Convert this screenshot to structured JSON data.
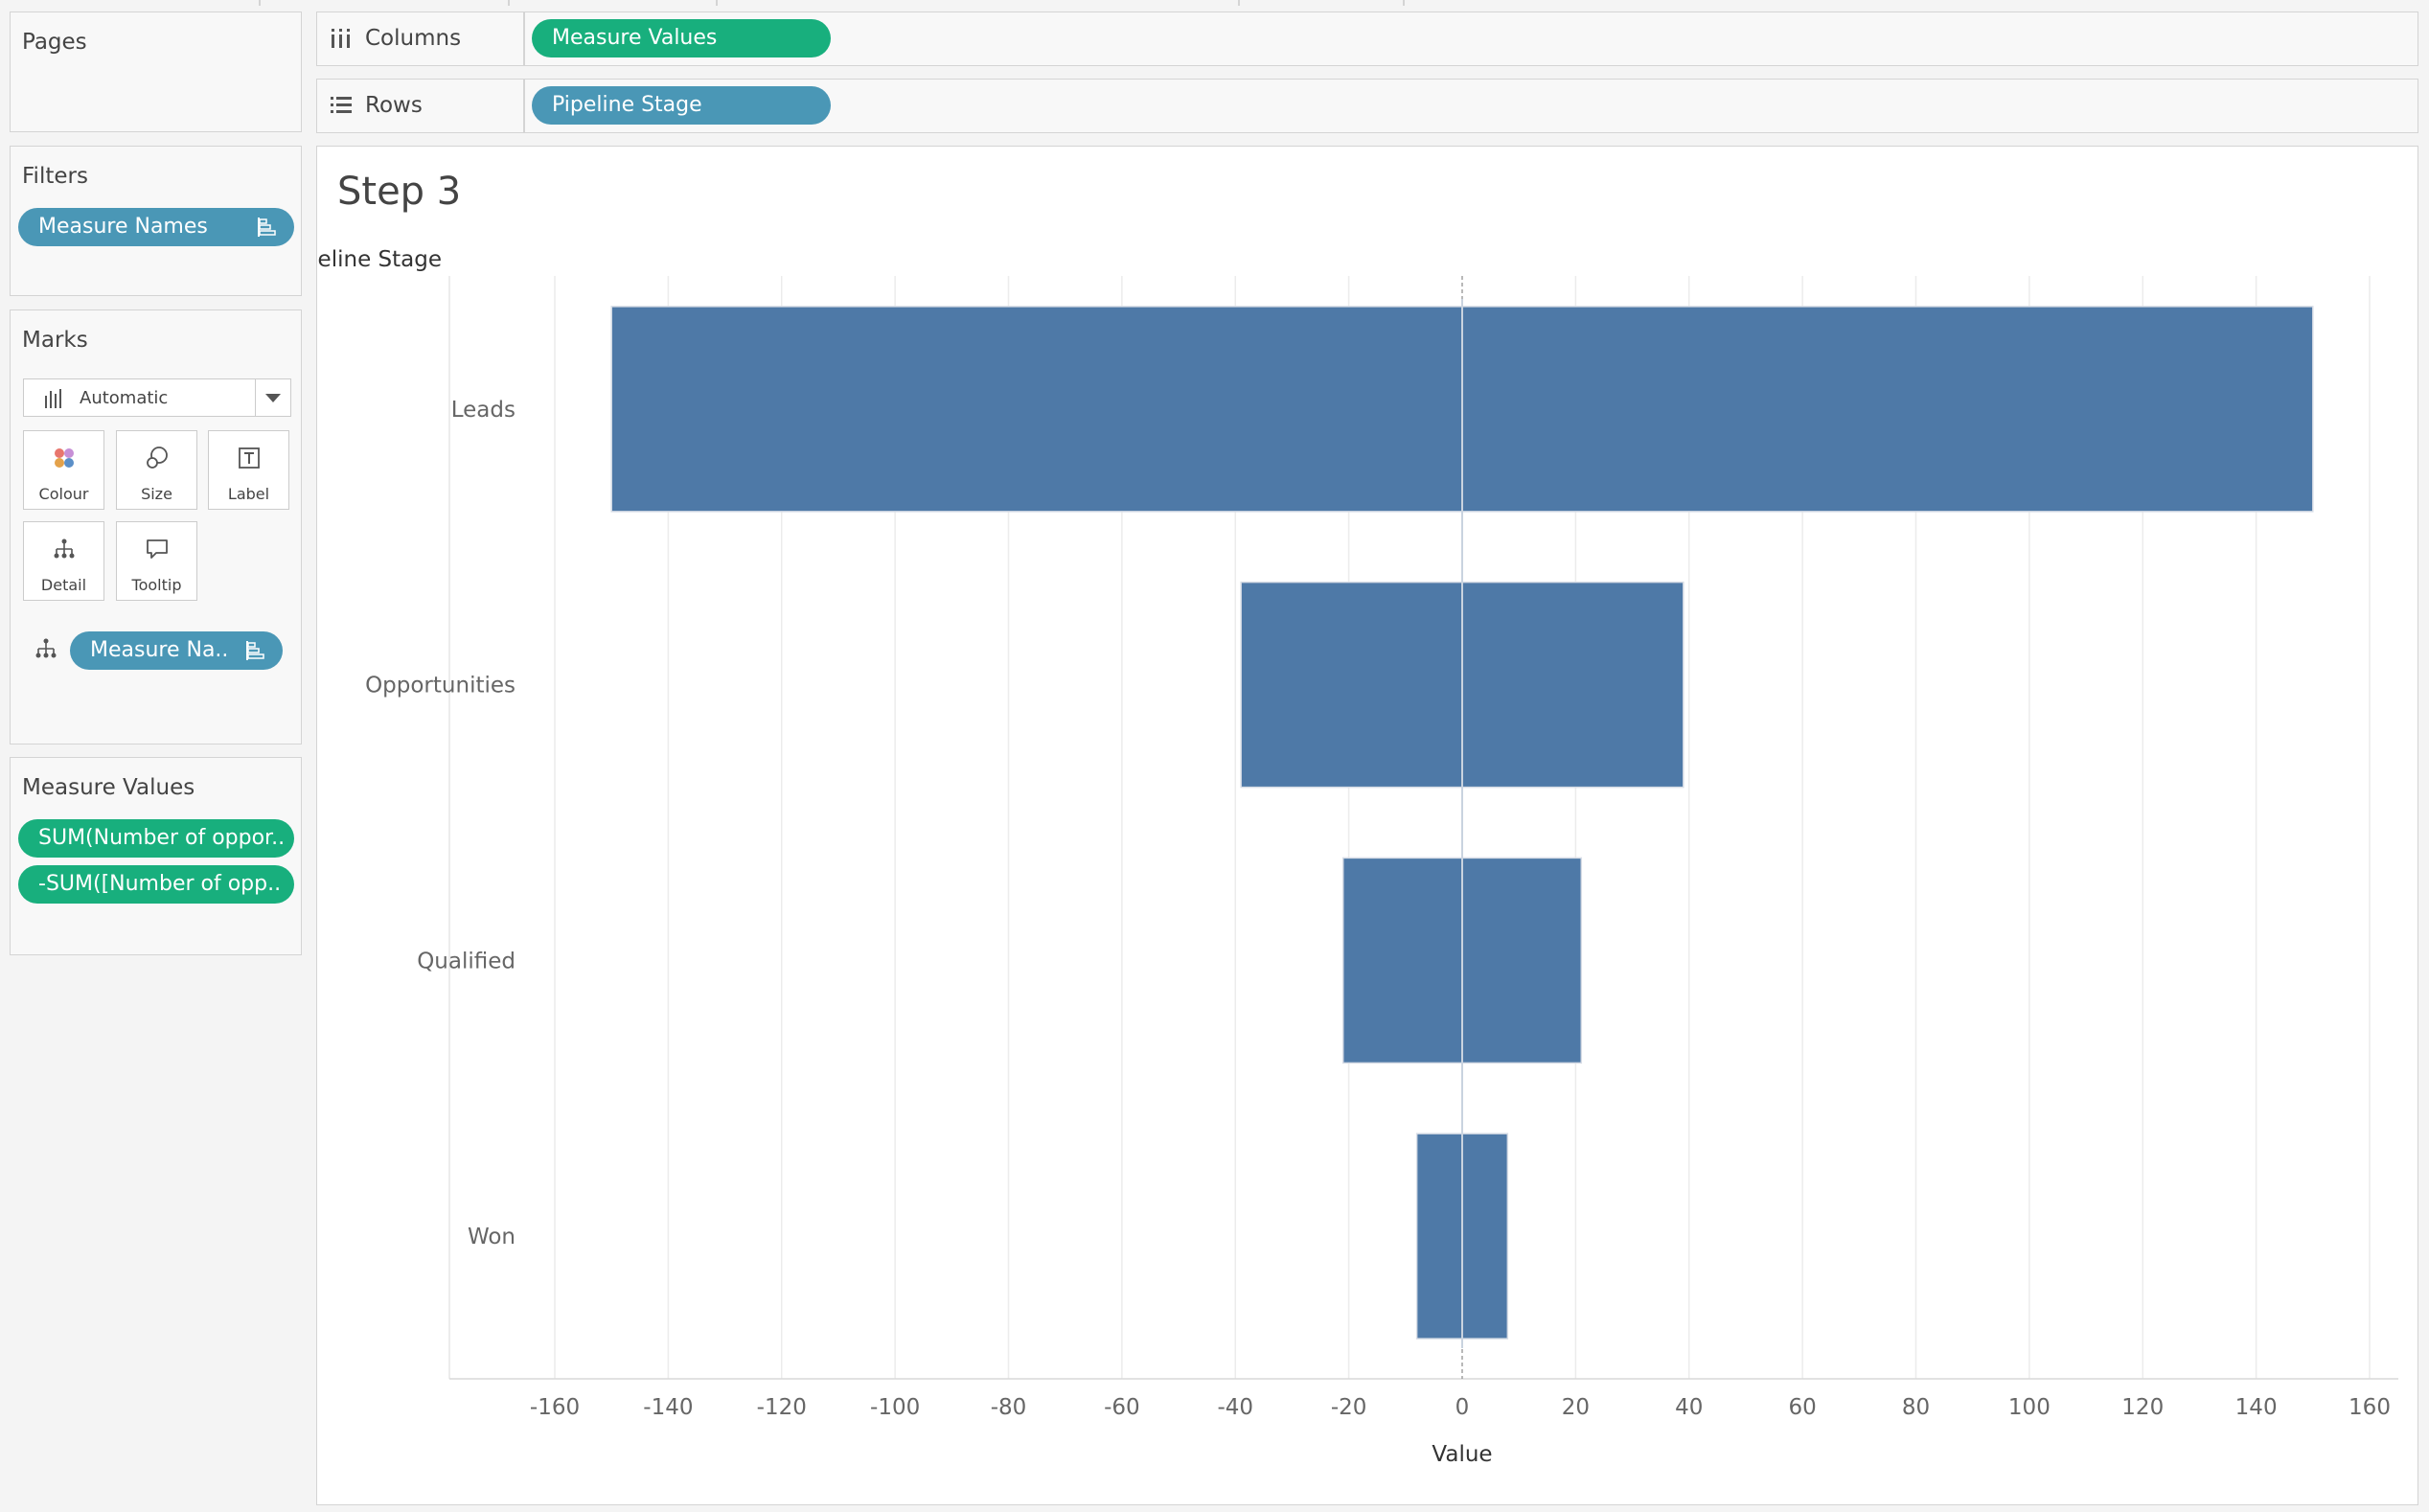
{
  "cards": {
    "pages": {
      "title": "Pages"
    },
    "filters": {
      "title": "Filters",
      "pills": [
        {
          "label": "Measure Names"
        }
      ]
    },
    "marks": {
      "title": "Marks",
      "mark_type": "Automatic",
      "buttons": [
        {
          "label": "Colour",
          "icon": "colour-icon"
        },
        {
          "label": "Size",
          "icon": "size-icon"
        },
        {
          "label": "Label",
          "icon": "label-icon"
        },
        {
          "label": "Detail",
          "icon": "detail-icon"
        },
        {
          "label": "Tooltip",
          "icon": "tooltip-icon"
        }
      ],
      "detail_pill": "Measure Na.."
    },
    "measure_values": {
      "title": "Measure Values",
      "pills": [
        {
          "label": "SUM(Number of oppor.."
        },
        {
          "label": "-SUM([Number of opp.."
        }
      ]
    }
  },
  "shelves": {
    "columns": {
      "label": "Columns",
      "pill": "Measure Values",
      "icon": "columns-icon"
    },
    "rows": {
      "label": "Rows",
      "pill": "Pipeline Stage",
      "icon": "rows-icon"
    }
  },
  "sheet": {
    "title": "Step 3"
  },
  "colors": {
    "bar": "#4e79a7",
    "dimension_pill": "#4a97b6",
    "measure_pill": "#18af7d"
  },
  "chart_data": {
    "type": "bar",
    "orientation": "horizontal",
    "row_header": "Pipeline Stage",
    "xlabel": "Value",
    "categories": [
      "Leads",
      "Opportunities",
      "Qualified",
      "Won"
    ],
    "series": [
      {
        "values": [
          150,
          39,
          21,
          8
        ]
      },
      {
        "values": [
          -150,
          -39,
          -21,
          -8
        ]
      }
    ],
    "xlim": [
      -160,
      160
    ],
    "xticks": [
      -160,
      -140,
      -120,
      -100,
      -80,
      -60,
      -40,
      -20,
      0,
      20,
      40,
      60,
      80,
      100,
      120,
      140,
      160
    ],
    "grid": true,
    "zero_line": true
  }
}
